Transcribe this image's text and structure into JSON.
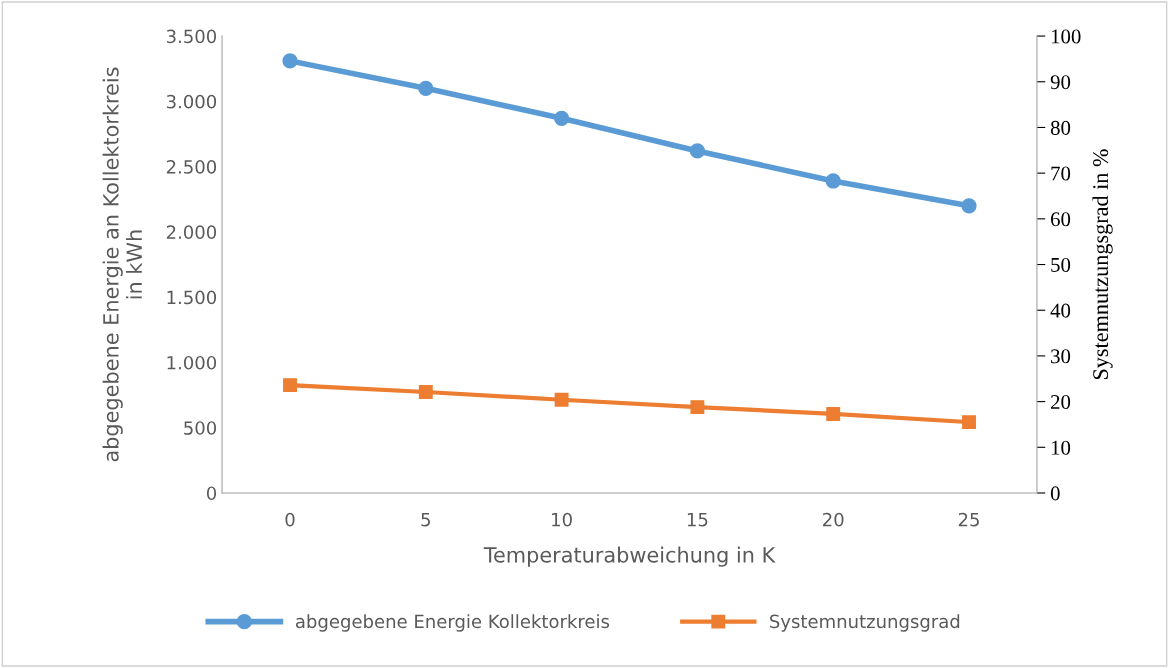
{
  "chart_data": {
    "type": "line",
    "categories": [
      "0",
      "5",
      "10",
      "15",
      "20",
      "25"
    ],
    "xlabel": "Temperaturabweichung in K",
    "ylabel": "abgegebene Energie an Kollektorkreis\nin kWh",
    "y2label": "Systemnutzungsgrad in %",
    "series": [
      {
        "name": "abgegebene Energie Kollektorkreis",
        "color": "#5b9bd5",
        "marker": "circle",
        "values": [
          3310,
          3100,
          2870,
          2620,
          2390,
          2200
        ]
      },
      {
        "name": "Systemnutzungsgrad",
        "color": "#ed7d31",
        "marker": "square",
        "axis": "y2",
        "values": [
          23.6,
          22.1,
          20.4,
          18.8,
          17.3,
          15.5
        ]
      }
    ],
    "ylim": [
      0,
      3500
    ],
    "yticks": [
      0,
      500,
      {
        "value": 1000,
        "label": "1.000"
      },
      {
        "value": 1500,
        "label": "1.500"
      },
      {
        "value": 2000,
        "label": "2.000"
      },
      {
        "value": 2500,
        "label": "2.500"
      },
      {
        "value": 3000,
        "label": "3.000"
      },
      {
        "value": 3500,
        "label": "3.500"
      }
    ],
    "y2lim": [
      0,
      100
    ],
    "y2ticks": [
      0,
      10,
      20,
      30,
      40,
      50,
      60,
      70,
      80,
      90,
      100
    ],
    "grid": false,
    "legend": "bottom"
  }
}
